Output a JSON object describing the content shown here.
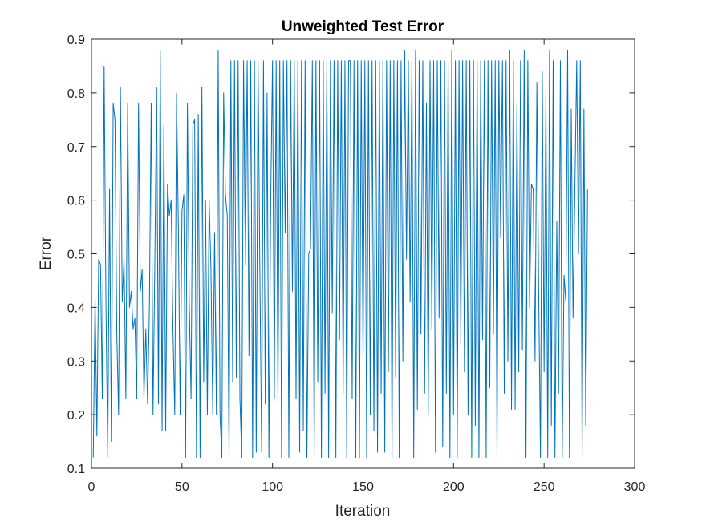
{
  "chart_data": {
    "type": "line",
    "title": "Unweighted Test Error",
    "xlabel": "Iteration",
    "ylabel": "Error",
    "xlim": [
      0,
      300
    ],
    "ylim": [
      0.1,
      0.9
    ],
    "xticks": [
      0,
      50,
      100,
      150,
      200,
      250,
      300
    ],
    "yticks": [
      0.1,
      0.2,
      0.3,
      0.4,
      0.5,
      0.6,
      0.7,
      0.8,
      0.9
    ],
    "xtick_labels": [
      "0",
      "50",
      "100",
      "150",
      "200",
      "250",
      "300"
    ],
    "ytick_labels": [
      "0.1",
      "0.2",
      "0.3",
      "0.4",
      "0.5",
      "0.6",
      "0.7",
      "0.8",
      "0.9"
    ],
    "grid": false,
    "line_color": "#0072BD",
    "series": [
      {
        "values": [
          0.12,
          0.42,
          0.16,
          0.49,
          0.48,
          0.23,
          0.85,
          0.41,
          0.12,
          0.62,
          0.15,
          0.78,
          0.75,
          0.35,
          0.2,
          0.81,
          0.41,
          0.49,
          0.23,
          0.78,
          0.4,
          0.43,
          0.36,
          0.38,
          0.23,
          0.78,
          0.43,
          0.47,
          0.23,
          0.36,
          0.22,
          0.4,
          0.78,
          0.2,
          0.48,
          0.81,
          0.22,
          0.88,
          0.17,
          0.74,
          0.17,
          0.63,
          0.57,
          0.6,
          0.36,
          0.2,
          0.8,
          0.55,
          0.2,
          0.58,
          0.61,
          0.12,
          0.78,
          0.41,
          0.23,
          0.74,
          0.75,
          0.12,
          0.76,
          0.12,
          0.81,
          0.26,
          0.6,
          0.2,
          0.6,
          0.47,
          0.2,
          0.54,
          0.2,
          0.88,
          0.2,
          0.12,
          0.8,
          0.61,
          0.57,
          0.12,
          0.86,
          0.26,
          0.86,
          0.27,
          0.86,
          0.23,
          0.12,
          0.86,
          0.48,
          0.86,
          0.31,
          0.86,
          0.12,
          0.86,
          0.13,
          0.86,
          0.47,
          0.13,
          0.86,
          0.22,
          0.8,
          0.12,
          0.6,
          0.86,
          0.23,
          0.86,
          0.22,
          0.86,
          0.12,
          0.86,
          0.54,
          0.86,
          0.12,
          0.86,
          0.43,
          0.86,
          0.23,
          0.86,
          0.13,
          0.86,
          0.17,
          0.86,
          0.12,
          0.5,
          0.51,
          0.86,
          0.12,
          0.86,
          0.26,
          0.86,
          0.12,
          0.86,
          0.24,
          0.86,
          0.12,
          0.86,
          0.39,
          0.86,
          0.12,
          0.86,
          0.34,
          0.86,
          0.24,
          0.86,
          0.12,
          0.86,
          0.86,
          0.23,
          0.86,
          0.12,
          0.86,
          0.12,
          0.86,
          0.3,
          0.86,
          0.12,
          0.86,
          0.2,
          0.86,
          0.17,
          0.86,
          0.13,
          0.86,
          0.24,
          0.86,
          0.13,
          0.86,
          0.28,
          0.86,
          0.12,
          0.86,
          0.27,
          0.86,
          0.12,
          0.86,
          0.3,
          0.88,
          0.49,
          0.86,
          0.41,
          0.86,
          0.12,
          0.88,
          0.21,
          0.86,
          0.35,
          0.86,
          0.24,
          0.78,
          0.2,
          0.86,
          0.36,
          0.86,
          0.13,
          0.86,
          0.38,
          0.86,
          0.14,
          0.86,
          0.24,
          0.86,
          0.12,
          0.88,
          0.2,
          0.86,
          0.12,
          0.86,
          0.33,
          0.86,
          0.28,
          0.86,
          0.2,
          0.86,
          0.12,
          0.86,
          0.18,
          0.86,
          0.12,
          0.86,
          0.34,
          0.86,
          0.12,
          0.86,
          0.25,
          0.86,
          0.35,
          0.86,
          0.12,
          0.86,
          0.53,
          0.86,
          0.24,
          0.86,
          0.3,
          0.88,
          0.21,
          0.86,
          0.21,
          0.78,
          0.28,
          0.86,
          0.32,
          0.88,
          0.12,
          0.86,
          0.4,
          0.63,
          0.62,
          0.3,
          0.82,
          0.43,
          0.12,
          0.84,
          0.28,
          0.8,
          0.12,
          0.88,
          0.18,
          0.86,
          0.12,
          0.56,
          0.24,
          0.86,
          0.12,
          0.46,
          0.41,
          0.88,
          0.12,
          0.77,
          0.38,
          0.62,
          0.86,
          0.5,
          0.86,
          0.12,
          0.77,
          0.18,
          0.62
        ]
      }
    ]
  }
}
